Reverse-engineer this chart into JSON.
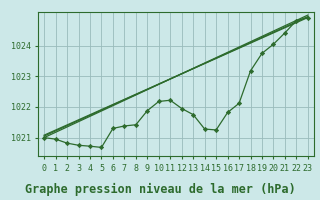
{
  "background_color": "#cce8e8",
  "plot_bg_color": "#cce8e8",
  "grid_color": "#99bbbb",
  "line_color": "#2d6b2d",
  "marker_color": "#2d6b2d",
  "title": "Graphe pression niveau de la mer (hPa)",
  "xlim": [
    -0.5,
    23.5
  ],
  "ylim": [
    1020.4,
    1025.1
  ],
  "yticks": [
    1021,
    1022,
    1023,
    1024
  ],
  "xtick_labels": [
    "0",
    "1",
    "2",
    "3",
    "4",
    "5",
    "6",
    "7",
    "8",
    "9",
    "10",
    "11",
    "12",
    "13",
    "14",
    "15",
    "16",
    "17",
    "18",
    "19",
    "20",
    "21",
    "22",
    "23"
  ],
  "straight_line1_x": [
    0,
    23
  ],
  "straight_line1_y": [
    1021.0,
    1025.0
  ],
  "straight_line2_x": [
    0,
    23
  ],
  "straight_line2_y": [
    1021.05,
    1024.95
  ],
  "straight_line3_x": [
    0,
    23
  ],
  "straight_line3_y": [
    1021.08,
    1024.92
  ],
  "wavy_line_x": [
    0,
    1,
    2,
    3,
    4,
    5,
    6,
    7,
    8,
    9,
    10,
    11,
    12,
    13,
    14,
    15,
    16,
    17,
    18,
    19,
    20,
    21,
    22,
    23
  ],
  "wavy_line_y": [
    1021.0,
    1020.95,
    1020.82,
    1020.75,
    1020.72,
    1020.68,
    1021.3,
    1021.38,
    1021.42,
    1021.88,
    1022.18,
    1022.22,
    1021.95,
    1021.75,
    1021.28,
    1021.25,
    1021.82,
    1022.12,
    1023.18,
    1023.75,
    1024.05,
    1024.42,
    1024.82,
    1024.92
  ],
  "title_fontsize": 8.5,
  "tick_fontsize": 6.0
}
